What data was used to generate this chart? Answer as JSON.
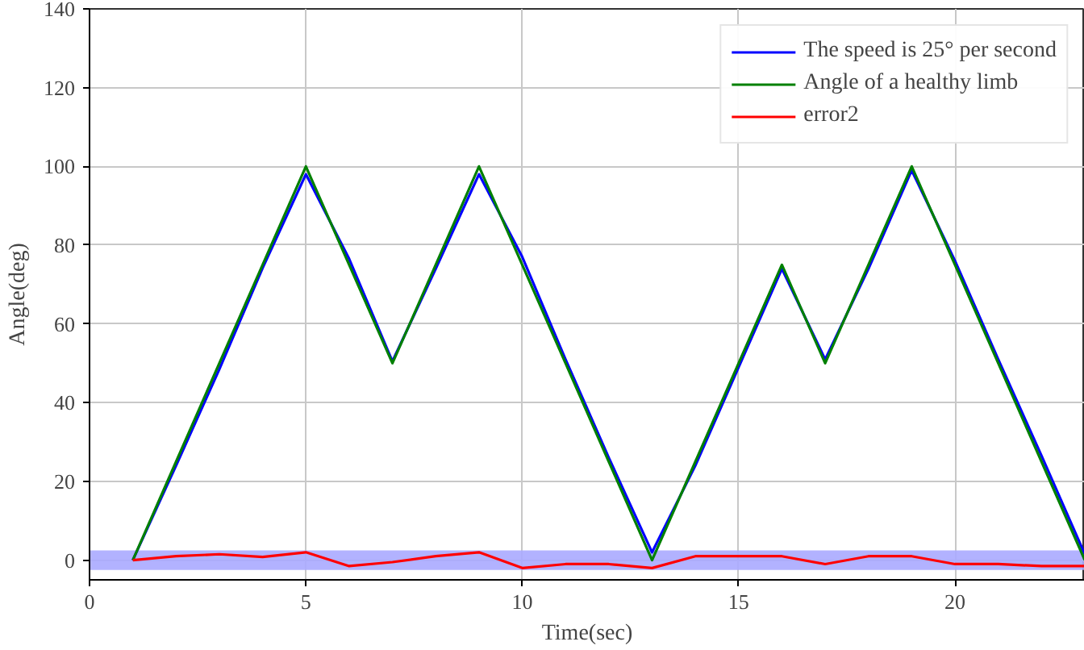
{
  "chart_data": {
    "type": "line",
    "xlabel": "Time(sec)",
    "ylabel": "Angle(deg)",
    "x": [
      1,
      2,
      3,
      4,
      5,
      6,
      7,
      8,
      9,
      10,
      11,
      12,
      13,
      14,
      15,
      16,
      17,
      18,
      19,
      20,
      21,
      22,
      23
    ],
    "series": [
      {
        "name": "The speed is 25° per second",
        "color": "#0000ff",
        "values": [
          0,
          24,
          48.5,
          74.2,
          98,
          76.5,
          50.5,
          74,
          98,
          77,
          51,
          26,
          2,
          24,
          49,
          74,
          51,
          74,
          99,
          76,
          51,
          26.5,
          1.5
        ]
      },
      {
        "name": "Angle of a healthy limb",
        "color": "#008000",
        "values": [
          0,
          25,
          50,
          75,
          100,
          75,
          50,
          75,
          100,
          75,
          50,
          25,
          0,
          25,
          50,
          75,
          50,
          75,
          100,
          75,
          50,
          25,
          0
        ]
      },
      {
        "name": "error2",
        "color": "#ff0000",
        "values": [
          0,
          1,
          1.5,
          0.8,
          2,
          -1.5,
          -0.5,
          1,
          2,
          -2,
          -1,
          -1,
          -2,
          1,
          1,
          1,
          -1,
          1,
          1,
          -1,
          -1,
          -1.5,
          -1.5
        ]
      }
    ],
    "bands": [
      {
        "axis": "y",
        "from": -2.5,
        "to": 2.5,
        "color": "#aaaaff"
      }
    ],
    "xlim": [
      0,
      23
    ],
    "ylim": [
      -5,
      140
    ],
    "xticks": [
      0,
      5,
      10,
      15,
      20
    ],
    "yticks": [
      0,
      20,
      40,
      60,
      80,
      100,
      120,
      140
    ],
    "grid": true,
    "legend": "top right",
    "line_style": "solid",
    "marker": "none"
  }
}
